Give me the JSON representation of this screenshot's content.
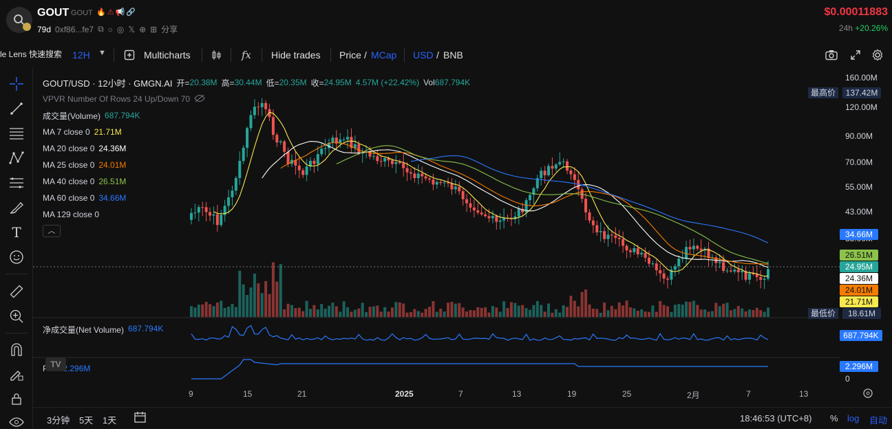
{
  "header": {
    "token_name": "GOUT",
    "token_sub": "GOUT",
    "token_flags": "🔥⚠📢🔗",
    "age": "79d",
    "address": "0xf86...fe7",
    "share_label": "分享",
    "price": "$0.00011883",
    "change_period": "24h",
    "change_value": "+20.26%"
  },
  "toolbar": {
    "lens_label": "le Lens 快速搜索",
    "interval": "12H",
    "multicharts": "Multicharts",
    "hide_trades": "Hide trades",
    "price_label": "Price",
    "slash1": "/",
    "mcap_label": "MCap",
    "usd_label": "USD",
    "slash2": "/",
    "bnb_label": "BNB"
  },
  "legend": {
    "pair": "GOUT/USD · 12小时 · GMGN.AI",
    "o_label": "开=",
    "o_val": "20.38M",
    "h_label": "高=",
    "h_val": "30.44M",
    "l_label": "低=",
    "l_val": "20.35M",
    "c_label": "收=",
    "c_val": "24.95M",
    "chg": "4.57M (+22.42%)",
    "vol_label": "Vol",
    "vol_val": "687.794K",
    "vpvr": "VPVR Number Of Rows 24 Up/Down 70",
    "volume_name": "成交量(Volume)",
    "volume_val": "687.794K",
    "ma7": "MA 7 close 0",
    "ma7_val": "21.71M",
    "ma20": "MA 20 close 0",
    "ma20_val": "24.36M",
    "ma25": "MA 25 close 0",
    "ma25_val": "24.01M",
    "ma40": "MA 40 close 0",
    "ma40_val": "26.51M",
    "ma60": "MA 60 close 0",
    "ma60_val": "34.66M",
    "ma129": "MA 129 close 0",
    "net_volume_name": "净成交量(Net Volume)",
    "net_volume_val": "687.794K",
    "pvt_name": "PVT",
    "pvt_val": "2.296M"
  },
  "price_axis": [
    "160.00M",
    "120.00M",
    "90.00M",
    "70.00M",
    "55.00M",
    "43.00M",
    "33.00M"
  ],
  "price_tags": {
    "high_label": "最高价",
    "high_val": "137.42M",
    "ma60": "34.66M",
    "ma40": "26.51M",
    "close": "24.95M",
    "ma20": "24.36M",
    "ma25": "24.01M",
    "ma7": "21.71M",
    "low_label": "最低价",
    "low_val": "18.61M",
    "net_volume": "687.794K",
    "pvt": "2.296M",
    "pvt_zero": "0"
  },
  "time_axis": [
    "9",
    "15",
    "21",
    "2025",
    "7",
    "13",
    "19",
    "25",
    "2月",
    "7",
    "13"
  ],
  "bottom": {
    "range1": "3分钟",
    "range2": "5天",
    "range3": "1天",
    "clock": "18:46:53 (UTC+8)",
    "pct": "%",
    "log": "log",
    "auto": "自动"
  },
  "colors": {
    "up": "#26a69a",
    "down": "#ef5350",
    "ma7": "#f7e94f",
    "ma20": "#ffffff",
    "ma25": "#f57c00",
    "ma40": "#8bc34a",
    "ma60": "#2979ff",
    "accent_blue": "#2962ff"
  }
}
